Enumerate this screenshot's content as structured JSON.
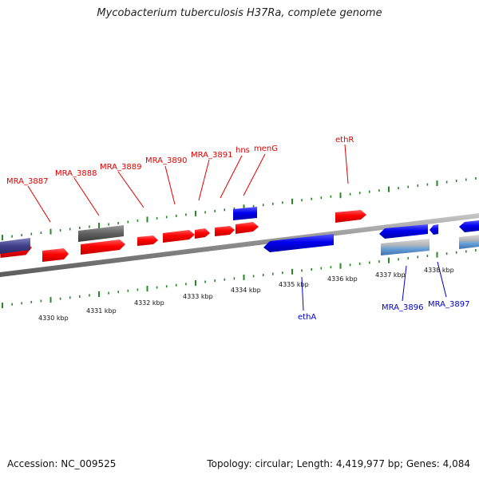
{
  "title": "Mycobacterium tuberculosis H37Ra, complete genome",
  "footer": {
    "accession": "Accession: NC_009525",
    "summary": "Topology: circular; Length: 4,419,977 bp; Genes: 4,084"
  },
  "colors": {
    "forward_gene": "#ff0000",
    "reverse_gene": "#0000ee",
    "backbone": "#8a8a8a",
    "ticks": "#228b22",
    "label_forward": "#e00000",
    "label_reverse": "#0000cc"
  },
  "map": {
    "ticks": [
      {
        "label": "4330 kbp"
      },
      {
        "label": "4331 kbp"
      },
      {
        "label": "4332 kbp"
      },
      {
        "label": "4333 kbp"
      },
      {
        "label": "4334 kbp"
      },
      {
        "label": "4335 kbp"
      },
      {
        "label": "4336 kbp"
      },
      {
        "label": "4337 kbp"
      },
      {
        "label": "4338 kbp"
      }
    ],
    "forward_labels": [
      {
        "name": "MRA_3887"
      },
      {
        "name": "MRA_3888"
      },
      {
        "name": "MRA_3889"
      },
      {
        "name": "MRA_3890"
      },
      {
        "name": "MRA_3891"
      },
      {
        "name": "hns"
      },
      {
        "name": "menG"
      },
      {
        "name": "ethR"
      }
    ],
    "reverse_labels": [
      {
        "name": "ethA"
      },
      {
        "name": "MRA_3896"
      },
      {
        "name": "MRA_3897"
      }
    ]
  }
}
